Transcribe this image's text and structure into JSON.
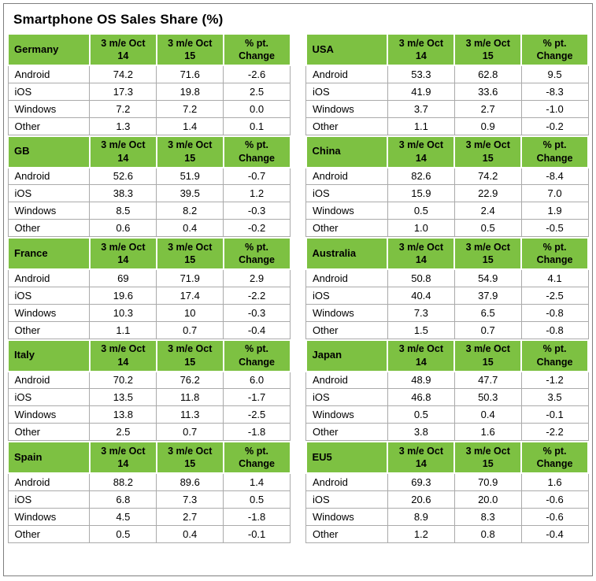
{
  "colors": {
    "header_green": "#7DC142",
    "text": "#000000",
    "background": "#ffffff"
  },
  "chart_data": {
    "type": "table",
    "title": "Smartphone OS Sales Share (%)",
    "column_headers": [
      "3 m/e Oct\n14",
      "3 m/e Oct\n15",
      "% pt.\nChange"
    ],
    "row_labels": [
      "Android",
      "iOS",
      "Windows",
      "Other"
    ],
    "left_count": 5,
    "layout": "two columns of five region tables, green header rows",
    "tables": [
      {
        "region": "Germany",
        "rows": [
          [
            "Android",
            "74.2",
            "71.6",
            "-2.6"
          ],
          [
            "iOS",
            "17.3",
            "19.8",
            "2.5"
          ],
          [
            "Windows",
            "7.2",
            "7.2",
            "0.0"
          ],
          [
            "Other",
            "1.3",
            "1.4",
            "0.1"
          ]
        ]
      },
      {
        "region": "GB",
        "rows": [
          [
            "Android",
            "52.6",
            "51.9",
            "-0.7"
          ],
          [
            "iOS",
            "38.3",
            "39.5",
            "1.2"
          ],
          [
            "Windows",
            "8.5",
            "8.2",
            "-0.3"
          ],
          [
            "Other",
            "0.6",
            "0.4",
            "-0.2"
          ]
        ]
      },
      {
        "region": "France",
        "rows": [
          [
            "Android",
            "69",
            "71.9",
            "2.9"
          ],
          [
            "iOS",
            "19.6",
            "17.4",
            "-2.2"
          ],
          [
            "Windows",
            "10.3",
            "10",
            "-0.3"
          ],
          [
            "Other",
            "1.1",
            "0.7",
            "-0.4"
          ]
        ]
      },
      {
        "region": "Italy",
        "rows": [
          [
            "Android",
            "70.2",
            "76.2",
            "6.0"
          ],
          [
            "iOS",
            "13.5",
            "11.8",
            "-1.7"
          ],
          [
            "Windows",
            "13.8",
            "11.3",
            "-2.5"
          ],
          [
            "Other",
            "2.5",
            "0.7",
            "-1.8"
          ]
        ]
      },
      {
        "region": "Spain",
        "rows": [
          [
            "Android",
            "88.2",
            "89.6",
            "1.4"
          ],
          [
            "iOS",
            "6.8",
            "7.3",
            "0.5"
          ],
          [
            "Windows",
            "4.5",
            "2.7",
            "-1.8"
          ],
          [
            "Other",
            "0.5",
            "0.4",
            "-0.1"
          ]
        ]
      },
      {
        "region": "USA",
        "rows": [
          [
            "Android",
            "53.3",
            "62.8",
            "9.5"
          ],
          [
            "iOS",
            "41.9",
            "33.6",
            "-8.3"
          ],
          [
            "Windows",
            "3.7",
            "2.7",
            "-1.0"
          ],
          [
            "Other",
            "1.1",
            "0.9",
            "-0.2"
          ]
        ]
      },
      {
        "region": "China",
        "rows": [
          [
            "Android",
            "82.6",
            "74.2",
            "-8.4"
          ],
          [
            "iOS",
            "15.9",
            "22.9",
            "7.0"
          ],
          [
            "Windows",
            "0.5",
            "2.4",
            "1.9"
          ],
          [
            "Other",
            "1.0",
            "0.5",
            "-0.5"
          ]
        ]
      },
      {
        "region": "Australia",
        "rows": [
          [
            "Android",
            "50.8",
            "54.9",
            "4.1"
          ],
          [
            "iOS",
            "40.4",
            "37.9",
            "-2.5"
          ],
          [
            "Windows",
            "7.3",
            "6.5",
            "-0.8"
          ],
          [
            "Other",
            "1.5",
            "0.7",
            "-0.8"
          ]
        ]
      },
      {
        "region": "Japan",
        "rows": [
          [
            "Android",
            "48.9",
            "47.7",
            "-1.2"
          ],
          [
            "iOS",
            "46.8",
            "50.3",
            "3.5"
          ],
          [
            "Windows",
            "0.5",
            "0.4",
            "-0.1"
          ],
          [
            "Other",
            "3.8",
            "1.6",
            "-2.2"
          ]
        ]
      },
      {
        "region": "EU5",
        "rows": [
          [
            "Android",
            "69.3",
            "70.9",
            "1.6"
          ],
          [
            "iOS",
            "20.6",
            "20.0",
            "-0.6"
          ],
          [
            "Windows",
            "8.9",
            "8.3",
            "-0.6"
          ],
          [
            "Other",
            "1.2",
            "0.8",
            "-0.4"
          ]
        ]
      }
    ]
  }
}
